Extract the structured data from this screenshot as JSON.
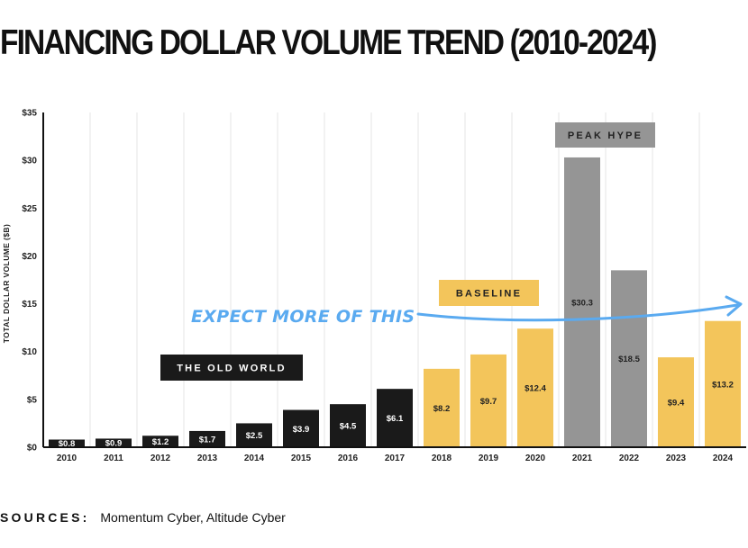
{
  "title": "FINANCING DOLLAR VOLUME TREND (2010-2024)",
  "sources": {
    "label": "SOURCES:",
    "text": "Momentum Cyber, Altitude Cyber"
  },
  "colors": {
    "old_world": "#1a1a1a",
    "baseline": "#f3c55b",
    "peak": "#959595",
    "arrow": "#5aaaf0"
  },
  "chart_data": {
    "type": "bar",
    "title": "FINANCING DOLLAR VOLUME TREND (2010-2024)",
    "xlabel": "",
    "ylabel": "TOTAL DOLLAR VOLUME ($B)",
    "ylim": [
      0,
      35
    ],
    "yticks": [
      0,
      5,
      10,
      15,
      20,
      25,
      30,
      35
    ],
    "ytick_labels": [
      "$0",
      "$5",
      "$10",
      "$15",
      "$20",
      "$25",
      "$30",
      "$35"
    ],
    "categories": [
      "2010",
      "2011",
      "2012",
      "2013",
      "2014",
      "2015",
      "2016",
      "2017",
      "2018",
      "2019",
      "2020",
      "2021",
      "2022",
      "2023",
      "2024"
    ],
    "values": [
      0.8,
      0.9,
      1.2,
      1.7,
      2.5,
      3.9,
      4.5,
      6.1,
      8.2,
      9.7,
      12.4,
      30.3,
      18.5,
      9.4,
      13.2
    ],
    "labels": [
      "$0.8",
      "$0.9",
      "$1.2",
      "$1.7",
      "$2.5",
      "$3.9",
      "$4.5",
      "$6.1",
      "$8.2",
      "$9.7",
      "$12.4",
      "$30.3",
      "$18.5",
      "$9.4",
      "$13.2"
    ],
    "groups": [
      "old",
      "old",
      "old",
      "old",
      "old",
      "old",
      "old",
      "old",
      "baseline",
      "baseline",
      "baseline",
      "peak",
      "peak",
      "baseline",
      "baseline"
    ],
    "grid": true,
    "annotations": [
      {
        "text": "THE OLD WORLD",
        "style": "old"
      },
      {
        "text": "BASELINE",
        "style": "baseline"
      },
      {
        "text": "PEAK HYPE",
        "style": "peak"
      },
      {
        "text": "EXPECT MORE OF THIS",
        "style": "arrow"
      }
    ]
  }
}
